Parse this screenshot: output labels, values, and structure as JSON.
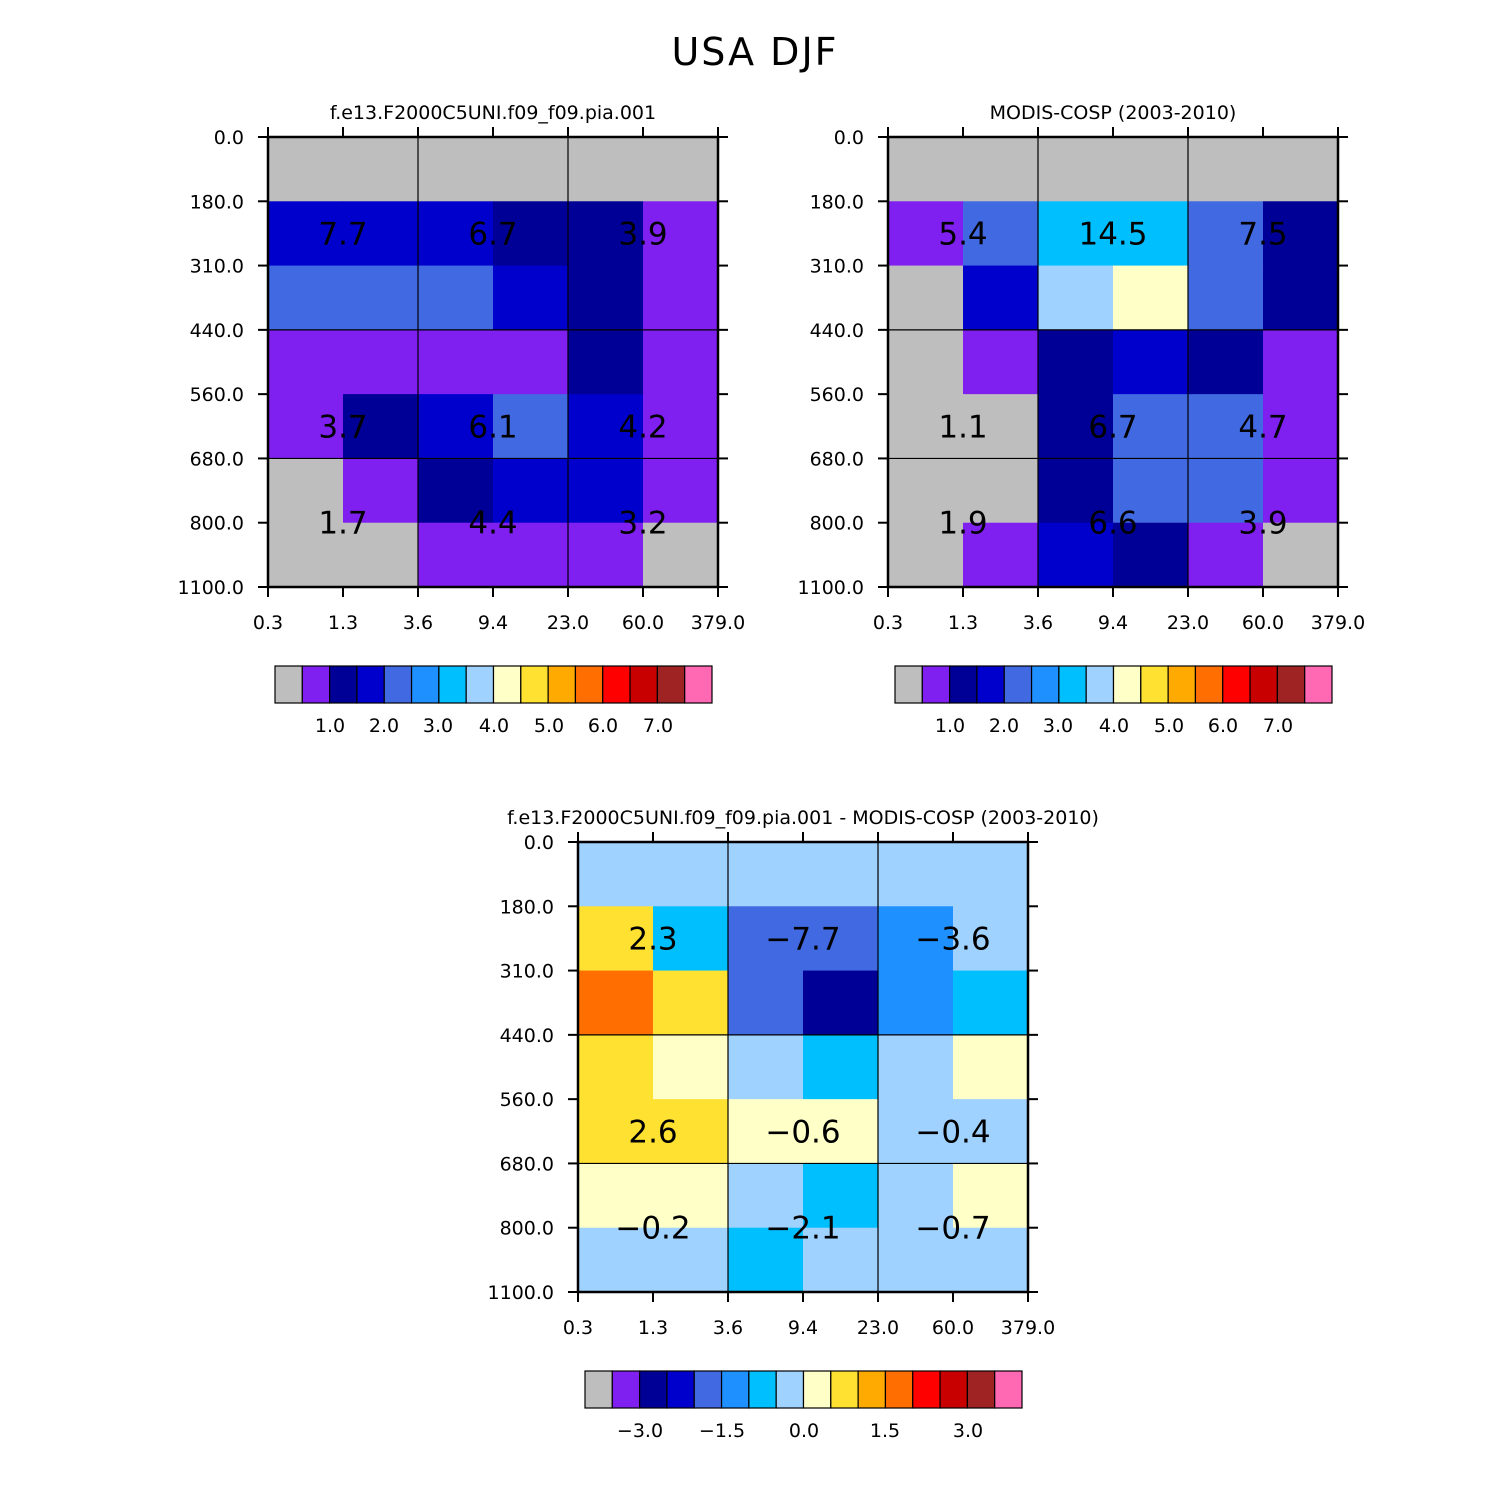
{
  "figure_title": "USA DJF",
  "palette": [
    "#bebebe",
    "#8020f0",
    "#000096",
    "#0000cd",
    "#4169e1",
    "#1e90ff",
    "#00bfff",
    "#a0d2ff",
    "#ffffc8",
    "#ffe132",
    "#ffaa00",
    "#ff6e00",
    "#ff0000",
    "#c80000",
    "#a02323",
    "#ff69b4"
  ],
  "chart_data": [
    {
      "type": "heatmap",
      "title": "f.e13.F2000C5UNI.f09_f09.pia.001",
      "x_ticks": [
        "0.3",
        "1.3",
        "3.6",
        "9.4",
        "23.0",
        "60.0",
        "379.0"
      ],
      "y_ticks": [
        "0.0",
        "180.0",
        "310.0",
        "440.0",
        "560.0",
        "680.0",
        "800.0",
        "1100.0"
      ],
      "cell_colors": [
        [
          0,
          0,
          0,
          0,
          0,
          0
        ],
        [
          3,
          3,
          3,
          2,
          2,
          1
        ],
        [
          4,
          4,
          4,
          3,
          2,
          1
        ],
        [
          1,
          1,
          1,
          1,
          2,
          1
        ],
        [
          1,
          2,
          3,
          4,
          3,
          1
        ],
        [
          0,
          1,
          2,
          3,
          3,
          1
        ],
        [
          0,
          0,
          1,
          1,
          1,
          0
        ]
      ],
      "box_labels": [
        [
          "7.7",
          "6.7",
          "3.9"
        ],
        [
          "3.7",
          "6.1",
          "4.2"
        ],
        [
          "1.7",
          "4.4",
          "3.2"
        ]
      ],
      "colorbar": {
        "ticks": [
          "1.0",
          "2.0",
          "3.0",
          "4.0",
          "5.0",
          "6.0",
          "7.0"
        ]
      }
    },
    {
      "type": "heatmap",
      "title": "MODIS-COSP (2003-2010)",
      "x_ticks": [
        "0.3",
        "1.3",
        "3.6",
        "9.4",
        "23.0",
        "60.0",
        "379.0"
      ],
      "y_ticks": [
        "0.0",
        "180.0",
        "310.0",
        "440.0",
        "560.0",
        "680.0",
        "800.0",
        "1100.0"
      ],
      "cell_colors": [
        [
          0,
          0,
          0,
          0,
          0,
          0
        ],
        [
          1,
          4,
          6,
          6,
          4,
          2
        ],
        [
          0,
          3,
          7,
          8,
          4,
          2
        ],
        [
          0,
          1,
          2,
          3,
          2,
          1
        ],
        [
          0,
          0,
          2,
          4,
          4,
          1
        ],
        [
          0,
          0,
          2,
          4,
          4,
          1
        ],
        [
          0,
          1,
          3,
          2,
          1,
          0
        ]
      ],
      "box_labels": [
        [
          "5.4",
          "14.5",
          "7.5"
        ],
        [
          "1.1",
          "6.7",
          "4.7"
        ],
        [
          "1.9",
          "6.6",
          "3.9"
        ]
      ],
      "colorbar": {
        "ticks": [
          "1.0",
          "2.0",
          "3.0",
          "4.0",
          "5.0",
          "6.0",
          "7.0"
        ]
      }
    },
    {
      "type": "heatmap",
      "title": "f.e13.F2000C5UNI.f09_f09.pia.001 - MODIS-COSP (2003-2010)",
      "x_ticks": [
        "0.3",
        "1.3",
        "3.6",
        "9.4",
        "23.0",
        "60.0",
        "379.0"
      ],
      "y_ticks": [
        "0.0",
        "180.0",
        "310.0",
        "440.0",
        "560.0",
        "680.0",
        "800.0",
        "1100.0"
      ],
      "cell_colors": [
        [
          7,
          7,
          7,
          7,
          7,
          7
        ],
        [
          9,
          6,
          4,
          4,
          5,
          7
        ],
        [
          11,
          9,
          4,
          2,
          5,
          6
        ],
        [
          9,
          8,
          7,
          6,
          7,
          8
        ],
        [
          9,
          9,
          8,
          8,
          7,
          7
        ],
        [
          8,
          8,
          7,
          6,
          7,
          8
        ],
        [
          7,
          7,
          6,
          7,
          7,
          7
        ]
      ],
      "box_labels": [
        [
          "2.3",
          "−7.7",
          "−3.6"
        ],
        [
          "2.6",
          "−0.6",
          "−0.4"
        ],
        [
          "−0.2",
          "−2.1",
          "−0.7"
        ]
      ],
      "colorbar": {
        "ticks": [
          "−3.0",
          "−1.5",
          "0.0",
          "1.5",
          "3.0"
        ]
      }
    }
  ]
}
